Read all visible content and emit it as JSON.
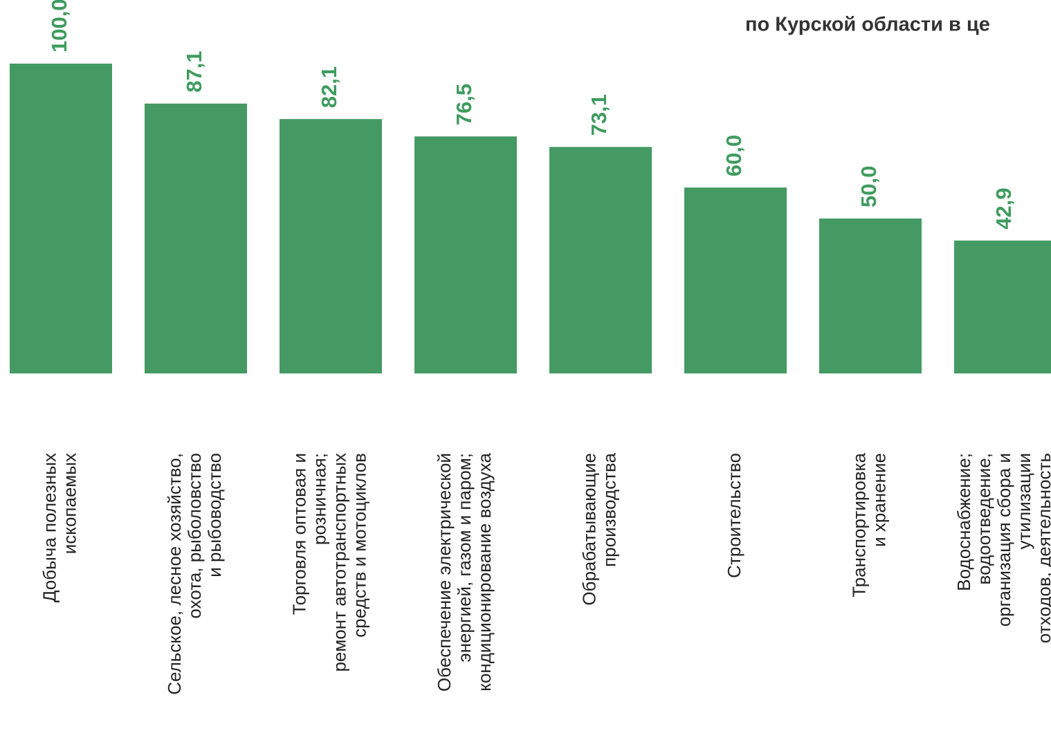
{
  "chart_data": {
    "type": "bar",
    "title": "по Курской области в це",
    "categories": [
      "Добыча полезных\nископаемых",
      "Сельское, лесное хозяйство,\nохота, рыболовство\nи рыбоводство",
      "Торговля оптовая и\nрозничная;\nремонт автотранспортных\nсредств и мотоциклов",
      "Обеспечение электрической\nэнергией, газом и паром;\nкондиционирование воздуха",
      "Обрабатывающие\nпроизводства",
      "Строительство",
      "Транспортировка\nи хранение",
      "Водоснабжение;\nводоотведение,\nорганизация сбора и\nутилизации\nотходов, деятельность"
    ],
    "values": [
      100.0,
      87.1,
      82.1,
      76.5,
      73.1,
      60.0,
      50.0,
      42.9
    ],
    "value_labels": [
      "100,0",
      "87,1",
      "82,1",
      "76,5",
      "73,1",
      "60,0",
      "50,0",
      "42,9"
    ],
    "color": "#459a63",
    "ylim": [
      0,
      100
    ]
  }
}
